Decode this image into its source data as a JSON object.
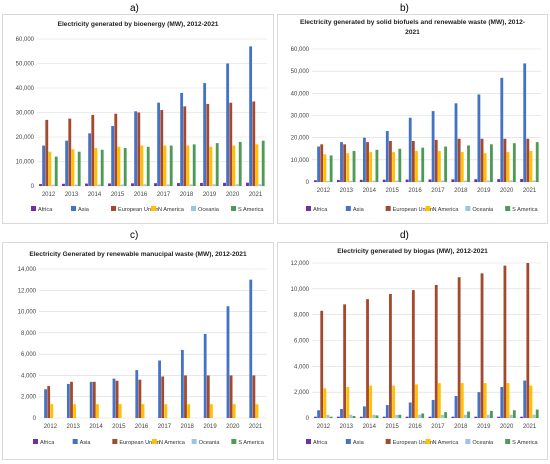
{
  "panels": {
    "a": "a)",
    "b": "b)",
    "c": "c)",
    "d": "d)"
  },
  "chart_data": [
    {
      "type": "bar",
      "title": "Electricity generated by bioenergy (MW), 2012-2021",
      "categories": [
        "2012",
        "2013",
        "2014",
        "2015",
        "2016",
        "2017",
        "2018",
        "2019",
        "2020",
        "2021"
      ],
      "ylim": [
        0,
        60000
      ],
      "yticks": [
        0,
        10000,
        20000,
        30000,
        40000,
        50000,
        60000
      ],
      "yticklabels": [
        "0",
        "10,000",
        "20,000",
        "30,000",
        "40,000",
        "50,000",
        "60,000"
      ],
      "grid": true,
      "legend": "bottom",
      "series": [
        {
          "name": "Africa",
          "color": "#7030a0",
          "values": [
            800,
            900,
            1000,
            1050,
            1100,
            1150,
            1200,
            1250,
            1300,
            1350
          ]
        },
        {
          "name": "Asia",
          "color": "#4472c4",
          "values": [
            16500,
            18500,
            21500,
            24500,
            30500,
            34000,
            38000,
            42000,
            50000,
            57000
          ]
        },
        {
          "name": "European Union",
          "color": "#a5492e",
          "values": [
            27000,
            27500,
            29000,
            29500,
            30000,
            31000,
            32500,
            33500,
            34000,
            34500
          ]
        },
        {
          "name": "N America",
          "color": "#ffc000",
          "values": [
            14000,
            15000,
            15500,
            16000,
            16500,
            16500,
            16500,
            16000,
            16500,
            17000
          ]
        },
        {
          "name": "Oceania",
          "color": "#9dc3e6",
          "values": [
            500,
            550,
            600,
            600,
            650,
            650,
            650,
            700,
            700,
            700
          ]
        },
        {
          "name": "S America",
          "color": "#4e9a57",
          "values": [
            12000,
            14000,
            14800,
            15500,
            16000,
            16500,
            17000,
            17500,
            18000,
            18500
          ]
        }
      ]
    },
    {
      "type": "bar",
      "title": "Electricity generated by solid biofuels and renewable waste (MW), 2012-2021",
      "categories": [
        "2012",
        "2013",
        "2014",
        "2015",
        "2016",
        "2017",
        "2018",
        "2019",
        "2020",
        "2021"
      ],
      "ylim": [
        0,
        60000
      ],
      "yticks": [
        0,
        10000,
        20000,
        30000,
        40000,
        50000,
        60000
      ],
      "yticklabels": [
        "0",
        "10,000",
        "20,000",
        "30,000",
        "40,000",
        "50,000",
        "60,000"
      ],
      "grid": true,
      "legend": "bottom",
      "series": [
        {
          "name": "Africa",
          "color": "#7030a0",
          "values": [
            800,
            900,
            1000,
            1050,
            1100,
            1150,
            1200,
            1250,
            1300,
            1350
          ]
        },
        {
          "name": "Asia",
          "color": "#4472c4",
          "values": [
            16000,
            18000,
            20000,
            23000,
            29000,
            32000,
            35500,
            39500,
            47000,
            53500
          ]
        },
        {
          "name": "European Union",
          "color": "#a5492e",
          "values": [
            17000,
            17000,
            18000,
            18500,
            18500,
            19000,
            19500,
            19500,
            19500,
            19500
          ]
        },
        {
          "name": "N America",
          "color": "#ffc000",
          "values": [
            12500,
            13000,
            13500,
            13500,
            14000,
            14000,
            13500,
            13000,
            13500,
            14000
          ]
        },
        {
          "name": "Oceania",
          "color": "#9dc3e6",
          "values": [
            500,
            550,
            600,
            600,
            650,
            650,
            650,
            700,
            700,
            700
          ]
        },
        {
          "name": "S America",
          "color": "#4e9a57",
          "values": [
            12000,
            14000,
            14500,
            15000,
            15500,
            16000,
            16500,
            17000,
            17500,
            18000
          ]
        }
      ]
    },
    {
      "type": "bar",
      "title": "Electricity Generated by renewable manucipal waste (MW), 2012-2021",
      "categories": [
        "2012",
        "2013",
        "2014",
        "2015",
        "2016",
        "2017",
        "2018",
        "2019",
        "2020",
        "2021"
      ],
      "ylim": [
        0,
        14000
      ],
      "yticks": [
        0,
        2000,
        4000,
        6000,
        8000,
        10000,
        12000,
        14000
      ],
      "yticklabels": [
        "0",
        "2,000",
        "4,000",
        "6,000",
        "8,000",
        "10,000",
        "12,000",
        "14,000"
      ],
      "grid": true,
      "legend": "bottom",
      "series": [
        {
          "name": "Africa",
          "color": "#7030a0",
          "values": [
            0,
            0,
            0,
            0,
            0,
            0,
            0,
            0,
            0,
            0
          ]
        },
        {
          "name": "Asia",
          "color": "#4472c4",
          "values": [
            2700,
            3200,
            3400,
            3700,
            4500,
            5400,
            6400,
            7900,
            10500,
            13000
          ]
        },
        {
          "name": "European Union",
          "color": "#a5492e",
          "values": [
            3000,
            3400,
            3400,
            3500,
            3600,
            3900,
            4000,
            4000,
            4000,
            4000
          ]
        },
        {
          "name": "N America",
          "color": "#ffc000",
          "values": [
            1300,
            1300,
            1300,
            1300,
            1300,
            1300,
            1300,
            1300,
            1300,
            1300
          ]
        },
        {
          "name": "Oceania",
          "color": "#9dc3e6",
          "values": [
            0,
            0,
            0,
            0,
            0,
            0,
            0,
            0,
            0,
            0
          ]
        },
        {
          "name": "S America",
          "color": "#4e9a57",
          "values": [
            0,
            0,
            0,
            0,
            0,
            0,
            0,
            0,
            0,
            0
          ]
        }
      ]
    },
    {
      "type": "bar",
      "title": "Electricity generated by biogas (MW), 2012-2021",
      "categories": [
        "2012",
        "2013",
        "2014",
        "2015",
        "2016",
        "2017",
        "2018",
        "2019",
        "2020",
        "2021"
      ],
      "ylim": [
        0,
        12000
      ],
      "yticks": [
        0,
        2000,
        4000,
        6000,
        8000,
        10000,
        12000
      ],
      "yticklabels": [
        "0",
        "2,000",
        "4,000",
        "6,000",
        "8,000",
        "10,000",
        "12,000"
      ],
      "grid": true,
      "legend": "bottom",
      "series": [
        {
          "name": "Africa",
          "color": "#7030a0",
          "values": [
            100,
            100,
            100,
            100,
            100,
            100,
            100,
            100,
            100,
            100
          ]
        },
        {
          "name": "Asia",
          "color": "#4472c4",
          "values": [
            600,
            700,
            900,
            1000,
            1200,
            1400,
            1700,
            2000,
            2400,
            2900
          ]
        },
        {
          "name": "European Union",
          "color": "#a5492e",
          "values": [
            8300,
            8800,
            9200,
            9600,
            9900,
            10300,
            10900,
            11200,
            11800,
            12000
          ]
        },
        {
          "name": "N America",
          "color": "#ffc000",
          "values": [
            2300,
            2400,
            2500,
            2500,
            2600,
            2700,
            2700,
            2700,
            2700,
            2500
          ]
        },
        {
          "name": "Oceania",
          "color": "#9dc3e6",
          "values": [
            250,
            250,
            250,
            250,
            250,
            250,
            250,
            250,
            250,
            250
          ]
        },
        {
          "name": "S America",
          "color": "#4e9a57",
          "values": [
            100,
            150,
            200,
            250,
            350,
            450,
            500,
            550,
            600,
            650
          ]
        }
      ]
    }
  ]
}
